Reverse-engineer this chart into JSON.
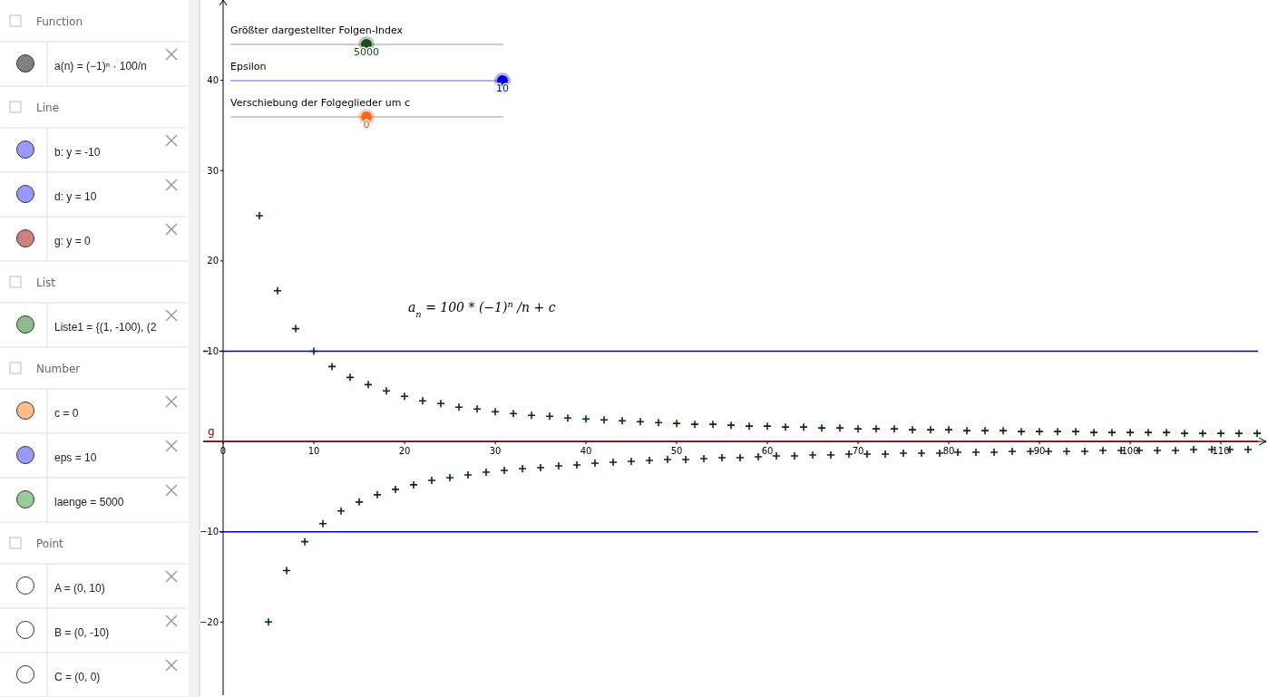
{
  "chart_data": [
    {
      "type": "other",
      "categories": [
        "Function",
        "Line",
        "List",
        "Number",
        "Point"
      ],
      "annotations": [
        "a(n) = (−1)ⁿ · 100/n",
        "b: y = -10",
        "d: y = 10",
        "g: y = 0",
        "Liste1 = {(1, -100), (2",
        "c = 0",
        "eps = 10",
        "laenge = 5000",
        "A = (0, 10)",
        "B = (0, -10)",
        "C = (0, 0)"
      ],
      "colors": [
        "#808080",
        "#9999ff",
        "#9999ff",
        "#cc8080",
        "#8fbc8f",
        "#ffbb88",
        "#9999ff",
        "#99cc99",
        "#ffffff",
        "#ffffff",
        "#ffffff"
      ]
    },
    {
      "type": "scatter",
      "marker": "cross",
      "grid": false,
      "xlim": [
        -2.2,
        115
      ],
      "ylim": [
        -28.1,
        48.9
      ],
      "xticks": [
        0,
        10,
        20,
        30,
        40,
        50,
        60,
        70,
        80,
        90,
        100,
        110
      ],
      "yticks": [
        -20,
        -10,
        10,
        20,
        30,
        40
      ],
      "ref_lines": [
        {
          "axis": "y",
          "value": 10,
          "color": "#0000cc"
        },
        {
          "axis": "y",
          "value": -10,
          "color": "#0000cc"
        },
        {
          "axis": "y",
          "value": 0,
          "label": "g",
          "color": "#800000"
        }
      ],
      "annotations": [
        "Größter dargestellter Folgen-Index",
        "5000",
        "Epsilon",
        "10",
        "Verschiebung der Folgeglieder um c",
        "0",
        "a$_{n}$ = 100 * (−1)$^{n}$/n + c"
      ],
      "series": [
        {
          "color": "#003300",
          "x": [
            4,
            5,
            6,
            7,
            8,
            9,
            10,
            11,
            12,
            13,
            14,
            15,
            16,
            17,
            18,
            19,
            20,
            21,
            22,
            23,
            24,
            25,
            26,
            27,
            28,
            29,
            30,
            31,
            32,
            33,
            34,
            35,
            36,
            37,
            38,
            39,
            40,
            41,
            42,
            43,
            44,
            45,
            46,
            47,
            48,
            49,
            50,
            51,
            52,
            53,
            54,
            55,
            56,
            57,
            58,
            59,
            60,
            61,
            62,
            63,
            64,
            65,
            66,
            67,
            68,
            69,
            70,
            71,
            72,
            73,
            74,
            75,
            76,
            77,
            78,
            79,
            80,
            81,
            82,
            83,
            84,
            85,
            86,
            87,
            88,
            89,
            90,
            91,
            92,
            93,
            94,
            95,
            96,
            97,
            98,
            99,
            100,
            101,
            102,
            103,
            104,
            105,
            106,
            107,
            108,
            109,
            110,
            111,
            112,
            113,
            114
          ],
          "values": [
            25,
            -20,
            16.7,
            -14.3,
            12.5,
            -11.1,
            10,
            -9.1,
            8.3,
            -7.7,
            7.1,
            -6.7,
            6.3,
            -5.9,
            5.6,
            -5.3,
            5,
            -4.8,
            4.5,
            -4.3,
            4.2,
            -4,
            3.8,
            -3.7,
            3.6,
            -3.4,
            3.3,
            -3.2,
            3.1,
            -3,
            2.9,
            -2.9,
            2.8,
            -2.7,
            2.6,
            -2.6,
            2.5,
            -2.4,
            2.4,
            -2.3,
            2.3,
            -2.2,
            2.2,
            -2.1,
            2.1,
            -2,
            2,
            -2,
            1.9,
            -1.9,
            1.9,
            -1.8,
            1.8,
            -1.8,
            1.7,
            -1.7,
            1.7,
            -1.6,
            1.6,
            -1.6,
            1.6,
            -1.5,
            1.5,
            -1.5,
            1.5,
            -1.4,
            1.4,
            -1.4,
            1.4,
            -1.4,
            1.4,
            -1.3,
            1.3,
            -1.3,
            1.3,
            -1.3,
            1.3,
            -1.2,
            1.2,
            -1.2,
            1.2,
            -1.2,
            1.2,
            -1.1,
            1.1,
            -1.1,
            1.1,
            -1.1,
            1.1,
            -1.1,
            1.1,
            -1.1,
            1,
            -1,
            1,
            -1,
            1,
            -1,
            1,
            -1,
            1,
            -1,
            0.9,
            -0.9,
            0.9,
            -0.9,
            0.9,
            -0.9,
            0.9,
            -0.9,
            0.9
          ]
        }
      ]
    }
  ]
}
